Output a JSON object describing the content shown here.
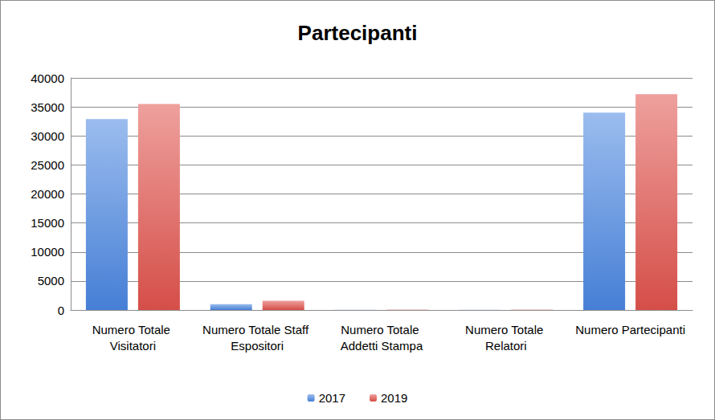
{
  "chart_data": {
    "type": "bar",
    "title": "Partecipanti",
    "categories": [
      "Numero Totale Visitatori",
      "Numero Totale Staff Espositori",
      "Numero Totale Addetti Stampa",
      "Numero Totale Relatori",
      "Numero Partecipanti"
    ],
    "series": [
      {
        "name": "2017",
        "color": "#4a86e0",
        "values": [
          32900,
          1000,
          50,
          50,
          34000
        ]
      },
      {
        "name": "2019",
        "color": "#e0524c",
        "values": [
          35500,
          1600,
          60,
          60,
          37200
        ]
      }
    ],
    "ylim": [
      0,
      40000
    ],
    "yticks": [
      0,
      5000,
      10000,
      15000,
      20000,
      25000,
      30000,
      35000,
      40000
    ],
    "grid": true,
    "legend": "bottom"
  }
}
